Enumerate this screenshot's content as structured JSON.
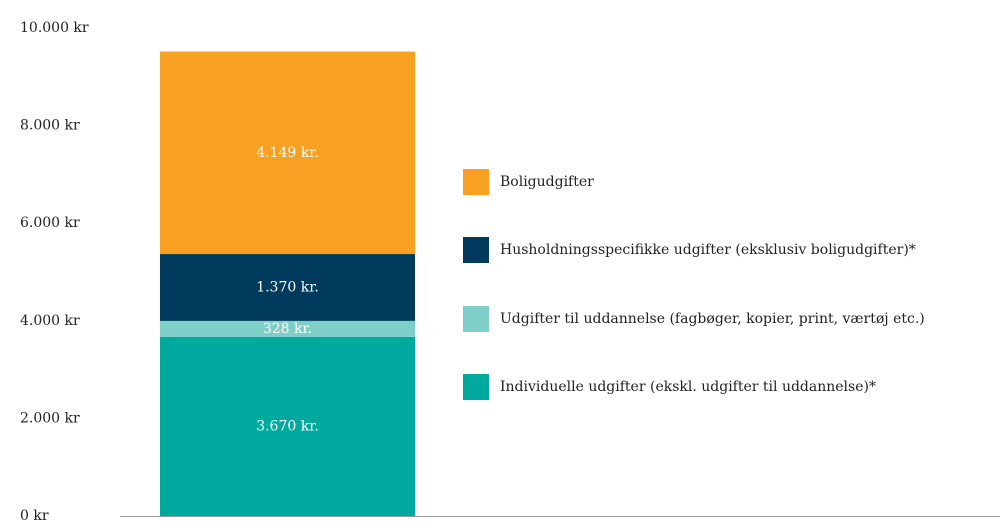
{
  "chart_data": {
    "type": "stacked_bar",
    "categories": [
      null
    ],
    "series": [
      {
        "name": "Individuelle udgifter (ekskl. udgifter til uddannelse)*",
        "color": "#00a99d",
        "values": [
          3670
        ],
        "value_labels": [
          "3.670 kr."
        ]
      },
      {
        "name": "Udgifter til uddannelse (fagbøger, kopier, print, værtøj etc.)",
        "color": "#7fcfc9",
        "values": [
          328
        ],
        "value_labels": [
          "328 kr."
        ]
      },
      {
        "name": "Husholdningsspecifikke udgifter (eksklusiv boligudgifter)*",
        "color": "#003a5d",
        "values": [
          1370
        ],
        "value_labels": [
          "1.370 kr."
        ]
      },
      {
        "name": "Boligudgifter",
        "color": "#f7a021",
        "values": [
          4149
        ],
        "value_labels": [
          "4.149 kr."
        ]
      }
    ],
    "ylim": [
      0,
      10000
    ],
    "yticks": [
      {
        "value": 0,
        "label": "0 kr"
      },
      {
        "value": 2000,
        "label": "2.000 kr"
      },
      {
        "value": 4000,
        "label": "4.000 kr"
      },
      {
        "value": 6000,
        "label": "6.000 kr"
      },
      {
        "value": 8000,
        "label": "8.000 kr"
      },
      {
        "value": 10000,
        "label": "10.000 kr"
      }
    ],
    "grid": false,
    "legend": "right"
  }
}
